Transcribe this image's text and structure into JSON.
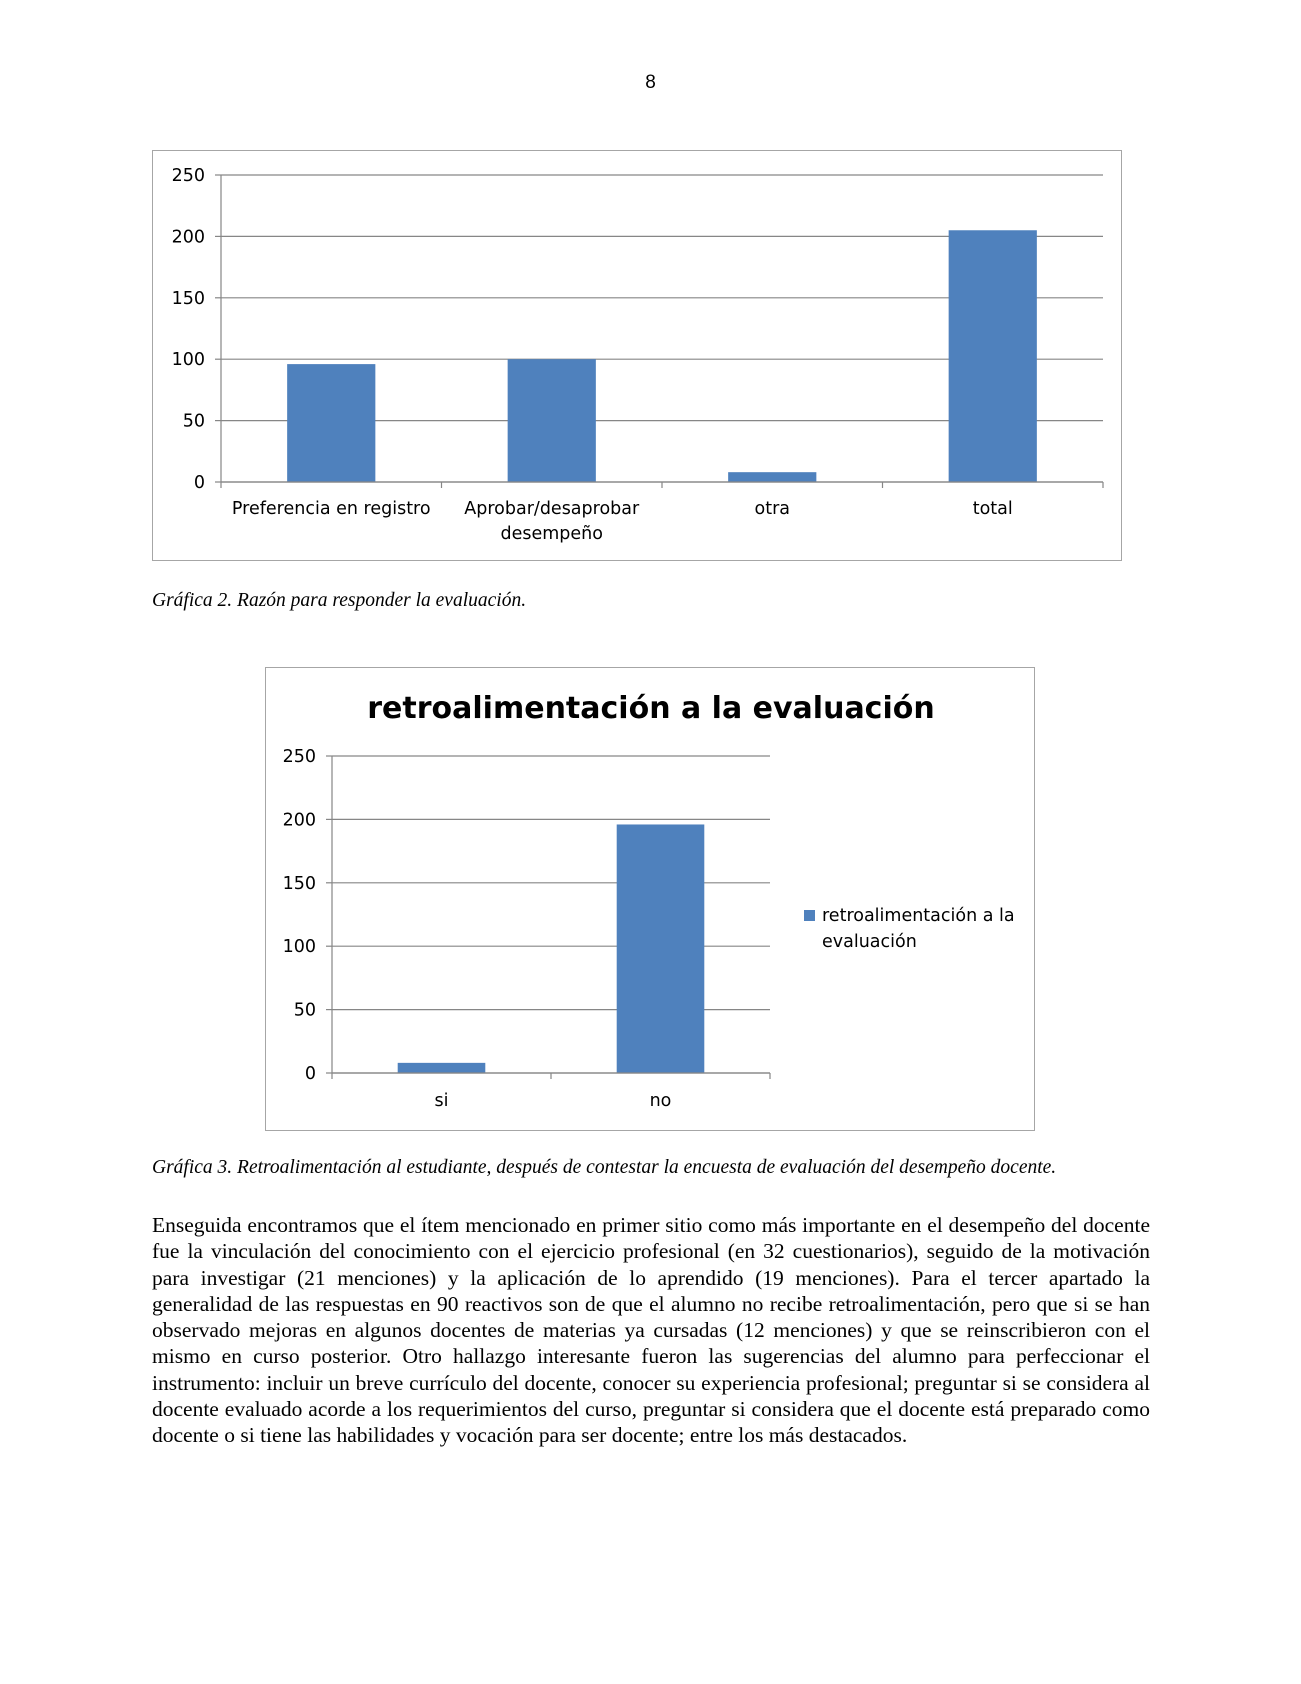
{
  "page": {
    "number": "8",
    "caption_1": "Gráfica 2. Razón para responder la evaluación.",
    "caption_2": "Gráfica 3. Retroalimentación al estudiante, después de contestar la encuesta de evaluación del desempeño docente.",
    "body": "Enseguida encontramos que el ítem mencionado en primer sitio como más importante en el desempeño del docente fue la vinculación del conocimiento con el ejercicio profesional (en 32 cuestionarios), seguido de la motivación para investigar (21 menciones) y la aplicación de lo aprendido (19 menciones). Para el tercer apartado la generalidad de las respuestas en 90 reactivos son de que el alumno no recibe retroalimentación, pero que si se han observado mejoras en algunos docentes de materias ya cursadas (12 menciones) y que se reinscribieron con el mismo en curso posterior. Otro hallazgo interesante fueron las sugerencias del alumno para perfeccionar el instrumento: incluir un breve currículo del docente, conocer su experiencia profesional; preguntar si se considera al docente evaluado acorde a los requerimientos del curso, preguntar si considera que el docente está preparado como docente o si tiene las habilidades y vocación para ser docente; entre los más destacados."
  },
  "chart_data": [
    {
      "type": "bar",
      "categories": [
        "Preferencia en registro",
        "Aprobar/desaprobar desempeño",
        "otra",
        "total"
      ],
      "category_lines": [
        [
          "Preferencia en registro"
        ],
        [
          "Aprobar/desaprobar",
          "desempeño"
        ],
        [
          "otra"
        ],
        [
          "total"
        ]
      ],
      "values": [
        96,
        100,
        8,
        205
      ],
      "title": "",
      "xlabel": "",
      "ylabel": "",
      "ylim": [
        0,
        250
      ],
      "yticks": [
        0,
        50,
        100,
        150,
        200,
        250
      ],
      "grid": true,
      "legend": "none",
      "bar_color": "#4f81bd"
    },
    {
      "type": "bar",
      "categories": [
        "si",
        "no"
      ],
      "category_lines": [
        [
          "si"
        ],
        [
          "no"
        ]
      ],
      "values": [
        8,
        196
      ],
      "title": "retroalimentación a la evaluación",
      "xlabel": "",
      "ylabel": "",
      "ylim": [
        0,
        250
      ],
      "yticks": [
        0,
        50,
        100,
        150,
        200,
        250
      ],
      "grid": true,
      "legend": "right",
      "series": [
        {
          "name": "retroalimentación a la evaluación",
          "legend_lines": [
            "retroalimentación a la",
            "evaluación"
          ],
          "values": [
            8,
            196
          ]
        }
      ],
      "bar_color": "#4f81bd"
    }
  ]
}
